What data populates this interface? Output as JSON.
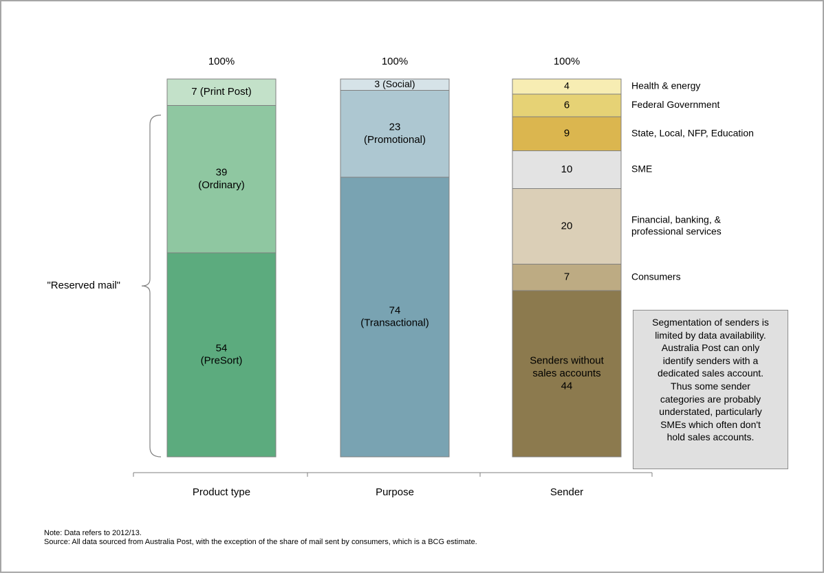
{
  "chart_data": {
    "type": "stacked-bar",
    "categories": [
      "Product type",
      "Purpose",
      "Sender"
    ],
    "totals_label": [
      "100%",
      "100%",
      "100%"
    ],
    "bars": [
      {
        "category": "Product type",
        "segments": [
          {
            "value": 54,
            "label": "54\n(PreSort)",
            "color": "#5cab7e"
          },
          {
            "value": 39,
            "label": "39\n(Ordinary)",
            "color": "#8fc7a1"
          },
          {
            "value": 7,
            "label": "7 (Print Post)",
            "color": "#c3e1c9"
          }
        ]
      },
      {
        "category": "Purpose",
        "segments": [
          {
            "value": 74,
            "label": "74\n(Transactional)",
            "color": "#79a3b2"
          },
          {
            "value": 23,
            "label": "23\n(Promotional)",
            "color": "#adc7d1"
          },
          {
            "value": 3,
            "label": "3 (Social)",
            "color": "#d6e3e8"
          }
        ]
      },
      {
        "category": "Sender",
        "segments": [
          {
            "value": 44,
            "label": "Senders without\nsales accounts\n44",
            "color": "#8c7a4e",
            "legend": ""
          },
          {
            "value": 7,
            "label": "7",
            "color": "#bdab83",
            "legend": "Consumers"
          },
          {
            "value": 20,
            "label": "20",
            "color": "#dbcfb7",
            "legend": "Financial, banking, &\nprofessional services"
          },
          {
            "value": 10,
            "label": "10",
            "color": "#e3e3e3",
            "legend": "SME"
          },
          {
            "value": 9,
            "label": "9",
            "color": "#dbb64f",
            "legend": "State, Local, NFP, Education"
          },
          {
            "value": 6,
            "label": "6",
            "color": "#e6d275",
            "legend": "Federal Government"
          },
          {
            "value": 4,
            "label": "4",
            "color": "#f7edb3",
            "legend": "Health & energy"
          }
        ]
      }
    ],
    "annotation": "\"Reserved mail\"",
    "ylim": [
      0,
      100
    ]
  },
  "note_box": {
    "lines": [
      "Segmentation of senders is",
      "limited by data availability.",
      "Australia Post can only",
      "identify senders with a",
      "dedicated sales account.",
      "Thus some sender",
      "categories are probably",
      "understated, particularly",
      "SMEs which often don't",
      "hold sales accounts."
    ]
  },
  "footnotes": {
    "note": "Note: Data refers to 2012/13.",
    "source": "Source: All data sourced from Australia Post, with the exception of the share of mail sent by consumers, which is a BCG estimate."
  }
}
